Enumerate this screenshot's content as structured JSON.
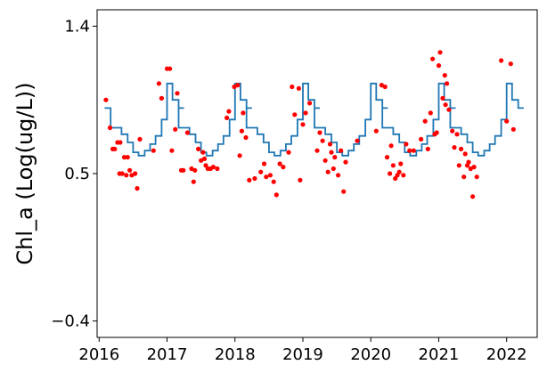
{
  "chart_data": {
    "type": "line+scatter",
    "title": "",
    "xlabel": "",
    "ylabel": "Chl_a (Log(ug/L))",
    "xlim": [
      2015.97,
      2022.45
    ],
    "ylim": [
      -0.5,
      1.5
    ],
    "x_ticks": [
      2016,
      2017,
      2018,
      2019,
      2020,
      2021,
      2022
    ],
    "x_tick_labels": [
      "2016",
      "2017",
      "2018",
      "2019",
      "2020",
      "2021",
      "2022"
    ],
    "y_ticks": [
      -0.4,
      0.5,
      1.4
    ],
    "y_tick_labels": [
      "−0.4",
      "0.5",
      "1.4"
    ],
    "grid": false,
    "legend": "none",
    "series": [
      {
        "kind": "line",
        "color": "#1f77b4",
        "points": [
          [
            2016.08,
            0.9
          ],
          [
            2016.17,
            0.9
          ],
          [
            2016.17,
            0.78
          ],
          [
            2016.33,
            0.78
          ],
          [
            2016.33,
            0.74
          ],
          [
            2016.42,
            0.74
          ],
          [
            2016.42,
            0.69
          ],
          [
            2016.5,
            0.69
          ],
          [
            2016.5,
            0.63
          ],
          [
            2016.58,
            0.63
          ],
          [
            2016.58,
            0.61
          ],
          [
            2016.67,
            0.61
          ],
          [
            2016.67,
            0.64
          ],
          [
            2016.75,
            0.64
          ],
          [
            2016.75,
            0.68
          ],
          [
            2016.83,
            0.68
          ],
          [
            2016.83,
            0.73
          ],
          [
            2016.92,
            0.73
          ],
          [
            2016.92,
            0.83
          ],
          [
            2017.0,
            0.83
          ],
          [
            2017.0,
            1.05
          ],
          [
            2017.08,
            1.05
          ],
          [
            2017.08,
            0.95
          ],
          [
            2017.17,
            0.95
          ],
          [
            2017.17,
            0.9
          ],
          [
            2017.25,
            0.9
          ]
        ],
        "periodic_years": 6
      },
      {
        "kind": "scatter",
        "color": "#ff0000",
        "points": [
          [
            2016.1,
            0.95
          ],
          [
            2016.16,
            0.78
          ],
          [
            2016.2,
            0.65
          ],
          [
            2016.23,
            0.65
          ],
          [
            2016.27,
            0.69
          ],
          [
            2016.3,
            0.5
          ],
          [
            2016.31,
            0.69
          ],
          [
            2016.34,
            0.5
          ],
          [
            2016.37,
            0.6
          ],
          [
            2016.4,
            0.49
          ],
          [
            2016.42,
            0.6
          ],
          [
            2016.45,
            0.52
          ],
          [
            2016.48,
            0.49
          ],
          [
            2016.53,
            0.5
          ],
          [
            2016.56,
            0.41
          ],
          [
            2016.6,
            0.71
          ],
          [
            2016.8,
            0.64
          ],
          [
            2016.88,
            1.05
          ],
          [
            2016.92,
            0.96
          ],
          [
            2017.0,
            1.14
          ],
          [
            2017.04,
            1.14
          ],
          [
            2017.07,
            0.64
          ],
          [
            2017.12,
            0.77
          ],
          [
            2017.15,
            0.99
          ],
          [
            2017.21,
            0.52
          ],
          [
            2017.24,
            0.52
          ],
          [
            2017.3,
            0.75
          ],
          [
            2017.36,
            0.53
          ],
          [
            2017.39,
            0.45
          ],
          [
            2017.41,
            0.52
          ],
          [
            2017.46,
            0.65
          ],
          [
            2017.5,
            0.58
          ],
          [
            2017.53,
            0.63
          ],
          [
            2017.55,
            0.59
          ],
          [
            2017.57,
            0.55
          ],
          [
            2017.6,
            0.53
          ],
          [
            2017.64,
            0.53
          ],
          [
            2017.68,
            0.54
          ],
          [
            2017.74,
            0.53
          ],
          [
            2017.88,
            0.84
          ],
          [
            2017.91,
            0.88
          ],
          [
            2017.99,
            1.03
          ],
          [
            2018.04,
            1.04
          ],
          [
            2018.07,
            0.61
          ],
          [
            2018.1,
            0.76
          ],
          [
            2018.12,
            0.87
          ],
          [
            2018.16,
            0.72
          ],
          [
            2018.21,
            0.46
          ],
          [
            2018.29,
            0.47
          ],
          [
            2018.38,
            0.51
          ],
          [
            2018.43,
            0.56
          ],
          [
            2018.46,
            0.48
          ],
          [
            2018.52,
            0.49
          ],
          [
            2018.57,
            0.45
          ],
          [
            2018.61,
            0.37
          ],
          [
            2018.66,
            0.56
          ],
          [
            2018.71,
            0.54
          ],
          [
            2018.79,
            0.63
          ],
          [
            2018.84,
            1.03
          ],
          [
            2018.88,
            0.86
          ],
          [
            2018.94,
            1.02
          ],
          [
            2018.96,
            0.46
          ],
          [
            2019.0,
            0.8
          ],
          [
            2019.04,
            0.87
          ],
          [
            2019.1,
            0.93
          ],
          [
            2019.21,
            0.64
          ],
          [
            2019.25,
            0.75
          ],
          [
            2019.29,
            0.7
          ],
          [
            2019.33,
            0.58
          ],
          [
            2019.37,
            0.51
          ],
          [
            2019.4,
            0.68
          ],
          [
            2019.42,
            0.63
          ],
          [
            2019.45,
            0.53
          ],
          [
            2019.47,
            0.6
          ],
          [
            2019.52,
            0.49
          ],
          [
            2019.56,
            0.64
          ],
          [
            2019.6,
            0.39
          ],
          [
            2019.63,
            0.57
          ],
          [
            2019.8,
            0.7
          ],
          [
            2020.08,
            0.76
          ],
          [
            2020.16,
            1.04
          ],
          [
            2020.21,
            1.03
          ],
          [
            2020.24,
            0.6
          ],
          [
            2020.28,
            0.5
          ],
          [
            2020.3,
            0.67
          ],
          [
            2020.33,
            0.55
          ],
          [
            2020.36,
            0.47
          ],
          [
            2020.39,
            0.49
          ],
          [
            2020.42,
            0.51
          ],
          [
            2020.44,
            0.56
          ],
          [
            2020.48,
            0.49
          ],
          [
            2020.52,
            0.68
          ],
          [
            2020.57,
            0.64
          ],
          [
            2020.63,
            0.64
          ],
          [
            2020.74,
            0.71
          ],
          [
            2020.8,
            0.82
          ],
          [
            2020.84,
            0.65
          ],
          [
            2020.88,
            0.87
          ],
          [
            2020.91,
            1.2
          ],
          [
            2020.94,
            0.74
          ],
          [
            2020.97,
            0.75
          ],
          [
            2021.0,
            1.16
          ],
          [
            2021.02,
            1.24
          ],
          [
            2021.06,
            0.96
          ],
          [
            2021.09,
            1.1
          ],
          [
            2021.1,
            0.92
          ],
          [
            2021.12,
            1.05
          ],
          [
            2021.15,
            0.89
          ],
          [
            2021.2,
            0.76
          ],
          [
            2021.23,
            0.66
          ],
          [
            2021.27,
            0.74
          ],
          [
            2021.3,
            0.55
          ],
          [
            2021.33,
            0.65
          ],
          [
            2021.37,
            0.48
          ],
          [
            2021.39,
            0.62
          ],
          [
            2021.42,
            0.55
          ],
          [
            2021.44,
            0.57
          ],
          [
            2021.47,
            0.53
          ],
          [
            2021.5,
            0.36
          ],
          [
            2021.52,
            0.54
          ],
          [
            2021.56,
            0.48
          ],
          [
            2021.92,
            1.19
          ],
          [
            2022.0,
            0.82
          ],
          [
            2022.06,
            1.17
          ],
          [
            2022.1,
            0.77
          ]
        ]
      }
    ]
  }
}
